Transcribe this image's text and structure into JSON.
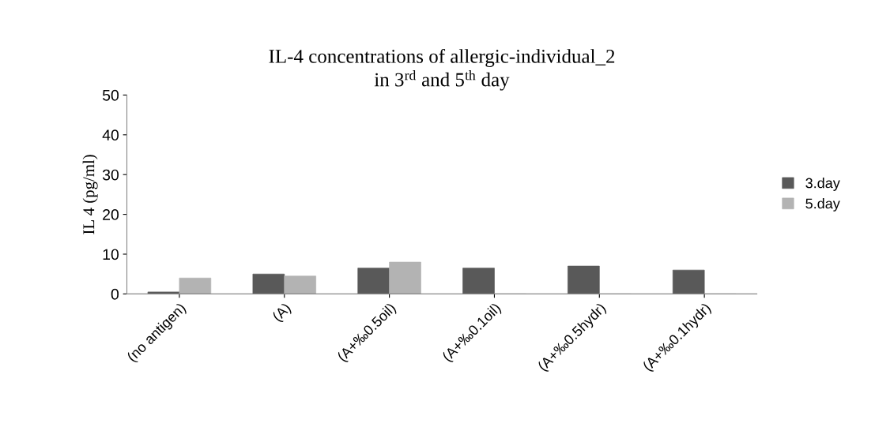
{
  "chart_data": {
    "type": "bar",
    "title": "IL-4 concentrations of allergic-individual_2\nin 3$^{rd}$ and 5$^{th}$ day",
    "ylabel": "IL 4 (pg/ml)",
    "categories": [
      "(no antigen)",
      "(A)",
      "(A+‰0.5oil)",
      "(A+‰0.1oil)",
      "(A+‰0.5hydr)",
      "(A+‰0.1hydr)"
    ],
    "series": [
      {
        "name": "3.day",
        "color": "#595959",
        "values": [
          0.5,
          5,
          6.5,
          6.5,
          7,
          6
        ]
      },
      {
        "name": "5.day",
        "color": "#b3b3b3",
        "values": [
          4,
          4.5,
          8,
          0,
          0,
          0
        ]
      }
    ],
    "ylim": [
      0,
      50
    ],
    "yticks": [
      0,
      10,
      20,
      30,
      40,
      50
    ],
    "grid": false,
    "legend": "right"
  }
}
